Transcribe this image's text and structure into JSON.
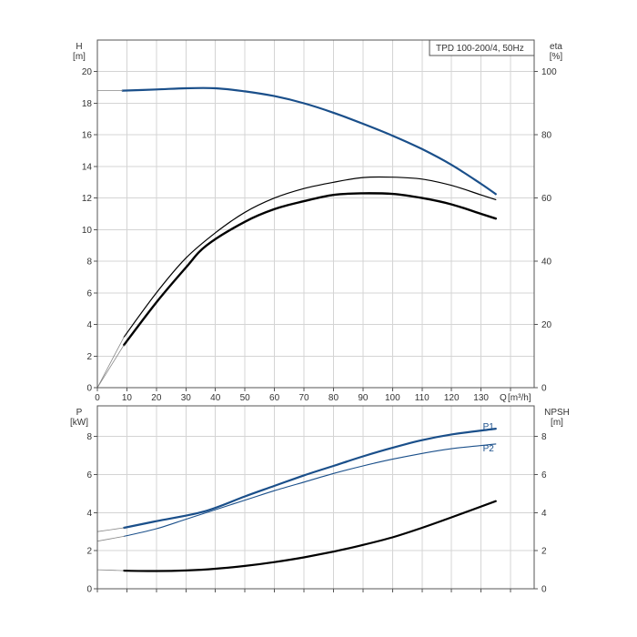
{
  "chart_data": [
    {
      "type": "line",
      "title": "TPD 100-200/4, 50Hz",
      "left_axis": {
        "label": "H",
        "unit": "[m]",
        "ticks": [
          0,
          2,
          4,
          6,
          8,
          10,
          12,
          14,
          16,
          18,
          20
        ],
        "range": [
          0,
          22
        ]
      },
      "right_axis": {
        "label": "eta",
        "unit": "[%]",
        "ticks": [
          0,
          20,
          40,
          60,
          80,
          100
        ],
        "range": [
          0,
          100
        ]
      },
      "x_axis": {
        "label": "Q",
        "unit": "[m³/h]",
        "ticks": [
          0,
          10,
          20,
          30,
          40,
          50,
          60,
          70,
          80,
          90,
          100,
          110,
          120,
          130
        ],
        "range": [
          0,
          148
        ]
      },
      "grid": true,
      "series": [
        {
          "name": "",
          "axis": "left",
          "color": "#1a4f8a",
          "width": 2.2,
          "points": [
            [
              8.5,
              18.8
            ],
            [
              20,
              18.87
            ],
            [
              30,
              18.95
            ],
            [
              40,
              18.95
            ],
            [
              50,
              18.75
            ],
            [
              60,
              18.45
            ],
            [
              70,
              18.0
            ],
            [
              80,
              17.4
            ],
            [
              90,
              16.7
            ],
            [
              100,
              15.95
            ],
            [
              110,
              15.1
            ],
            [
              120,
              14.1
            ],
            [
              130,
              12.9
            ],
            [
              135,
              12.25
            ]
          ]
        },
        {
          "name": "",
          "axis": "left",
          "color": "#888888",
          "width": 0.8,
          "points": [
            [
              0,
              18.8
            ],
            [
              8.5,
              18.8
            ]
          ]
        },
        {
          "name": "",
          "axis": "right",
          "color": "#000000",
          "width": 1.2,
          "points": [
            [
              9,
              16
            ],
            [
              20,
              30
            ],
            [
              30,
              41
            ],
            [
              40,
              49
            ],
            [
              50,
              55.5
            ],
            [
              60,
              60
            ],
            [
              70,
              63
            ],
            [
              80,
              65
            ],
            [
              90,
              66.5
            ],
            [
              100,
              66.6
            ],
            [
              110,
              66
            ],
            [
              120,
              64
            ],
            [
              130,
              61
            ],
            [
              135,
              59.5
            ]
          ]
        },
        {
          "name": "",
          "axis": "right",
          "color": "#000000",
          "width": 2.4,
          "points": [
            [
              9,
              13.5
            ],
            [
              20,
              27
            ],
            [
              30,
              38
            ],
            [
              37,
              45
            ],
            [
              50,
              52.5
            ],
            [
              60,
              56.5
            ],
            [
              70,
              59
            ],
            [
              80,
              61
            ],
            [
              90,
              61.5
            ],
            [
              100,
              61.3
            ],
            [
              110,
              60
            ],
            [
              120,
              58
            ],
            [
              130,
              55
            ],
            [
              135,
              53.5
            ]
          ]
        },
        {
          "name": "",
          "axis": "right",
          "color": "#888888",
          "width": 0.8,
          "points": [
            [
              0,
              0
            ],
            [
              9,
              13.5
            ]
          ]
        },
        {
          "name": "",
          "axis": "right",
          "color": "#888888",
          "width": 0.8,
          "points": [
            [
              0,
              0
            ],
            [
              9,
              16
            ]
          ]
        }
      ]
    },
    {
      "type": "line",
      "title": "",
      "left_axis": {
        "label": "P",
        "unit": "[kW]",
        "ticks": [
          0,
          2,
          4,
          6,
          8
        ],
        "range": [
          0,
          9.6
        ]
      },
      "right_axis": {
        "label": "NPSH",
        "unit": "[m]",
        "ticks": [
          0,
          2,
          4,
          6,
          8
        ],
        "range": [
          0,
          9.6
        ]
      },
      "x_axis": {
        "label": "",
        "unit": "",
        "range": [
          0,
          148
        ]
      },
      "grid": true,
      "series": [
        {
          "name": "P1",
          "axis": "left",
          "color": "#1a4f8a",
          "width": 2.2,
          "label_at": [
            130,
            8.55
          ],
          "points": [
            [
              9,
              3.2
            ],
            [
              20,
              3.55
            ],
            [
              36,
              4.05
            ],
            [
              50,
              4.85
            ],
            [
              60,
              5.4
            ],
            [
              70,
              5.95
            ],
            [
              80,
              6.45
            ],
            [
              90,
              6.95
            ],
            [
              100,
              7.4
            ],
            [
              110,
              7.8
            ],
            [
              120,
              8.1
            ],
            [
              135,
              8.4
            ]
          ]
        },
        {
          "name": "P2",
          "axis": "left",
          "color": "#1a4f8a",
          "width": 1.1,
          "label_at": [
            130,
            7.4
          ],
          "points": [
            [
              9,
              2.75
            ],
            [
              20,
              3.15
            ],
            [
              30,
              3.65
            ],
            [
              40,
              4.15
            ],
            [
              50,
              4.65
            ],
            [
              60,
              5.15
            ],
            [
              70,
              5.6
            ],
            [
              80,
              6.05
            ],
            [
              90,
              6.45
            ],
            [
              100,
              6.8
            ],
            [
              110,
              7.1
            ],
            [
              120,
              7.35
            ],
            [
              135,
              7.6
            ]
          ]
        },
        {
          "name": "",
          "axis": "right",
          "color": "#000000",
          "width": 2.2,
          "points": [
            [
              9,
              0.95
            ],
            [
              20,
              0.93
            ],
            [
              30,
              0.96
            ],
            [
              40,
              1.05
            ],
            [
              50,
              1.2
            ],
            [
              60,
              1.4
            ],
            [
              70,
              1.65
            ],
            [
              80,
              1.95
            ],
            [
              90,
              2.3
            ],
            [
              100,
              2.7
            ],
            [
              110,
              3.2
            ],
            [
              120,
              3.75
            ],
            [
              135,
              4.6
            ]
          ]
        },
        {
          "name": "",
          "axis": "left",
          "color": "#888888",
          "width": 0.8,
          "points": [
            [
              0,
              3.0
            ],
            [
              9,
              3.2
            ]
          ]
        },
        {
          "name": "",
          "axis": "left",
          "color": "#888888",
          "width": 0.8,
          "points": [
            [
              0,
              2.5
            ],
            [
              9,
              2.75
            ]
          ]
        },
        {
          "name": "",
          "axis": "right",
          "color": "#888888",
          "width": 0.8,
          "points": [
            [
              0,
              1.0
            ],
            [
              9,
              0.95
            ]
          ]
        }
      ]
    }
  ]
}
